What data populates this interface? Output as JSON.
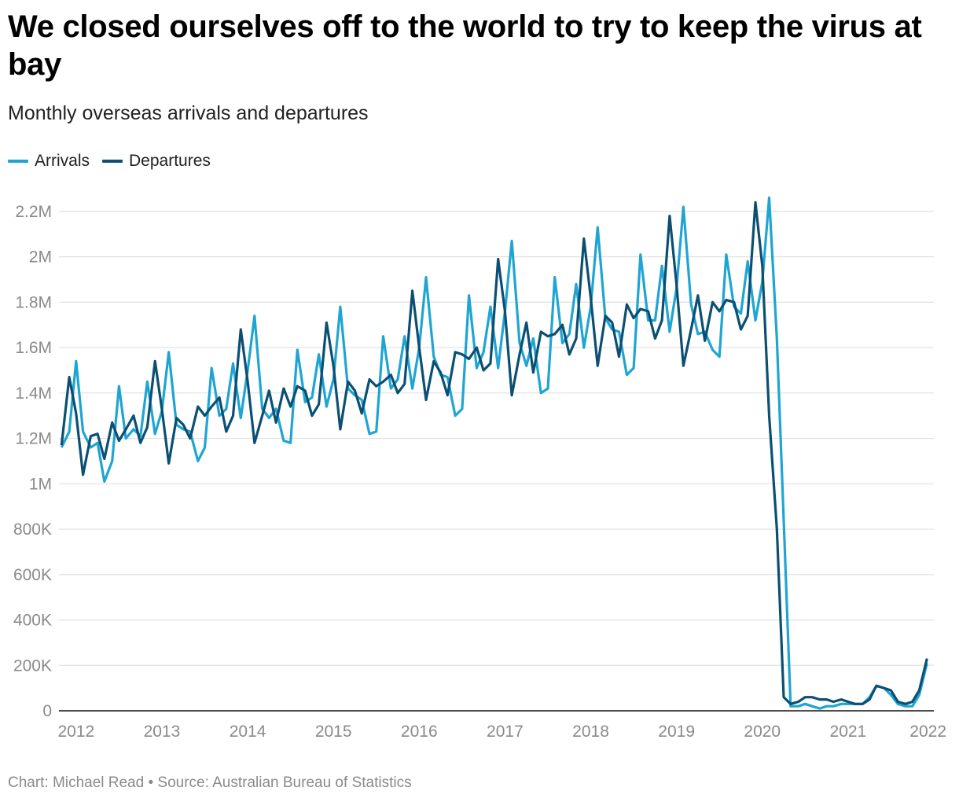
{
  "title": "We closed ourselves off to the world to try to keep the virus at bay",
  "subtitle": "Monthly overseas arrivals and departures",
  "footer": "Chart: Michael Read • Source: Australian Bureau of Statistics",
  "colors": {
    "arrivals": "#1fa5d2",
    "departures": "#0b4f73",
    "grid": "#e0e0e0",
    "axis": "#111111"
  },
  "chart_data": {
    "type": "line",
    "x_range": [
      2011.8,
      2022.0
    ],
    "ylim": [
      0,
      2300000
    ],
    "y_ticks": [
      {
        "value": 0,
        "label": "0"
      },
      {
        "value": 200000,
        "label": "200K"
      },
      {
        "value": 400000,
        "label": "400K"
      },
      {
        "value": 600000,
        "label": "600K"
      },
      {
        "value": 800000,
        "label": "800K"
      },
      {
        "value": 1000000,
        "label": "1M"
      },
      {
        "value": 1200000,
        "label": "1.2M"
      },
      {
        "value": 1400000,
        "label": "1.4M"
      },
      {
        "value": 1600000,
        "label": "1.6M"
      },
      {
        "value": 1800000,
        "label": "1.8M"
      },
      {
        "value": 2000000,
        "label": "2M"
      },
      {
        "value": 2200000,
        "label": "2.2M"
      }
    ],
    "x_ticks": [
      {
        "value": 2012,
        "label": "2012"
      },
      {
        "value": 2013,
        "label": "2013"
      },
      {
        "value": 2014,
        "label": "2014"
      },
      {
        "value": 2015,
        "label": "2015"
      },
      {
        "value": 2016,
        "label": "2016"
      },
      {
        "value": 2017,
        "label": "2017"
      },
      {
        "value": 2018,
        "label": "2018"
      },
      {
        "value": 2019,
        "label": "2019"
      },
      {
        "value": 2020,
        "label": "2020"
      },
      {
        "value": 2021,
        "label": "2021"
      },
      {
        "value": 2022,
        "label": "2022"
      }
    ],
    "grid": true,
    "legend_position": "top-left",
    "series": [
      {
        "name": "Arrivals",
        "color": "#1fa5d2",
        "points": [
          [
            2011.83,
            1160000
          ],
          [
            2011.92,
            1230000
          ],
          [
            2012.0,
            1540000
          ],
          [
            2012.08,
            1230000
          ],
          [
            2012.17,
            1160000
          ],
          [
            2012.25,
            1180000
          ],
          [
            2012.33,
            1010000
          ],
          [
            2012.42,
            1100000
          ],
          [
            2012.5,
            1430000
          ],
          [
            2012.58,
            1200000
          ],
          [
            2012.67,
            1240000
          ],
          [
            2012.75,
            1210000
          ],
          [
            2012.83,
            1450000
          ],
          [
            2012.92,
            1220000
          ],
          [
            2013.0,
            1320000
          ],
          [
            2013.08,
            1580000
          ],
          [
            2013.17,
            1260000
          ],
          [
            2013.25,
            1240000
          ],
          [
            2013.33,
            1230000
          ],
          [
            2013.42,
            1100000
          ],
          [
            2013.5,
            1160000
          ],
          [
            2013.58,
            1510000
          ],
          [
            2013.67,
            1300000
          ],
          [
            2013.75,
            1330000
          ],
          [
            2013.83,
            1530000
          ],
          [
            2013.92,
            1290000
          ],
          [
            2014.0,
            1500000
          ],
          [
            2014.08,
            1740000
          ],
          [
            2014.17,
            1330000
          ],
          [
            2014.25,
            1290000
          ],
          [
            2014.33,
            1330000
          ],
          [
            2014.42,
            1190000
          ],
          [
            2014.5,
            1180000
          ],
          [
            2014.58,
            1590000
          ],
          [
            2014.67,
            1360000
          ],
          [
            2014.75,
            1380000
          ],
          [
            2014.83,
            1570000
          ],
          [
            2014.92,
            1340000
          ],
          [
            2015.0,
            1460000
          ],
          [
            2015.08,
            1780000
          ],
          [
            2015.17,
            1420000
          ],
          [
            2015.25,
            1390000
          ],
          [
            2015.33,
            1370000
          ],
          [
            2015.42,
            1220000
          ],
          [
            2015.5,
            1230000
          ],
          [
            2015.58,
            1650000
          ],
          [
            2015.67,
            1420000
          ],
          [
            2015.75,
            1460000
          ],
          [
            2015.83,
            1650000
          ],
          [
            2015.92,
            1420000
          ],
          [
            2016.0,
            1600000
          ],
          [
            2016.08,
            1910000
          ],
          [
            2016.17,
            1560000
          ],
          [
            2016.25,
            1480000
          ],
          [
            2016.33,
            1470000
          ],
          [
            2016.42,
            1300000
          ],
          [
            2016.5,
            1330000
          ],
          [
            2016.58,
            1830000
          ],
          [
            2016.67,
            1510000
          ],
          [
            2016.75,
            1580000
          ],
          [
            2016.83,
            1780000
          ],
          [
            2016.92,
            1510000
          ],
          [
            2017.0,
            1760000
          ],
          [
            2017.08,
            2070000
          ],
          [
            2017.17,
            1620000
          ],
          [
            2017.25,
            1520000
          ],
          [
            2017.33,
            1640000
          ],
          [
            2017.42,
            1400000
          ],
          [
            2017.5,
            1420000
          ],
          [
            2017.58,
            1910000
          ],
          [
            2017.67,
            1620000
          ],
          [
            2017.75,
            1660000
          ],
          [
            2017.83,
            1880000
          ],
          [
            2017.92,
            1600000
          ],
          [
            2018.0,
            1780000
          ],
          [
            2018.08,
            2130000
          ],
          [
            2018.17,
            1730000
          ],
          [
            2018.25,
            1680000
          ],
          [
            2018.33,
            1670000
          ],
          [
            2018.42,
            1480000
          ],
          [
            2018.5,
            1510000
          ],
          [
            2018.58,
            2010000
          ],
          [
            2018.67,
            1720000
          ],
          [
            2018.75,
            1720000
          ],
          [
            2018.83,
            1960000
          ],
          [
            2018.92,
            1670000
          ],
          [
            2019.0,
            1860000
          ],
          [
            2019.08,
            2220000
          ],
          [
            2019.17,
            1790000
          ],
          [
            2019.25,
            1660000
          ],
          [
            2019.33,
            1670000
          ],
          [
            2019.42,
            1590000
          ],
          [
            2019.5,
            1560000
          ],
          [
            2019.58,
            2010000
          ],
          [
            2019.67,
            1780000
          ],
          [
            2019.75,
            1750000
          ],
          [
            2019.83,
            1980000
          ],
          [
            2019.92,
            1720000
          ],
          [
            2020.0,
            1890000
          ],
          [
            2020.08,
            2260000
          ],
          [
            2020.17,
            1640000
          ],
          [
            2020.25,
            840000
          ],
          [
            2020.33,
            20000
          ],
          [
            2020.42,
            20000
          ],
          [
            2020.5,
            30000
          ],
          [
            2020.58,
            20000
          ],
          [
            2020.67,
            10000
          ],
          [
            2020.75,
            20000
          ],
          [
            2020.83,
            20000
          ],
          [
            2020.92,
            30000
          ],
          [
            2021.0,
            30000
          ],
          [
            2021.08,
            30000
          ],
          [
            2021.17,
            30000
          ],
          [
            2021.25,
            60000
          ],
          [
            2021.33,
            110000
          ],
          [
            2021.42,
            100000
          ],
          [
            2021.5,
            70000
          ],
          [
            2021.58,
            30000
          ],
          [
            2021.67,
            20000
          ],
          [
            2021.75,
            20000
          ],
          [
            2021.83,
            70000
          ],
          [
            2021.92,
            210000
          ]
        ]
      },
      {
        "name": "Departures",
        "color": "#0b4f73",
        "points": [
          [
            2011.83,
            1170000
          ],
          [
            2011.92,
            1470000
          ],
          [
            2012.0,
            1310000
          ],
          [
            2012.08,
            1040000
          ],
          [
            2012.17,
            1210000
          ],
          [
            2012.25,
            1220000
          ],
          [
            2012.33,
            1110000
          ],
          [
            2012.42,
            1270000
          ],
          [
            2012.5,
            1190000
          ],
          [
            2012.58,
            1240000
          ],
          [
            2012.67,
            1300000
          ],
          [
            2012.75,
            1180000
          ],
          [
            2012.83,
            1250000
          ],
          [
            2012.92,
            1540000
          ],
          [
            2013.0,
            1330000
          ],
          [
            2013.08,
            1090000
          ],
          [
            2013.17,
            1290000
          ],
          [
            2013.25,
            1260000
          ],
          [
            2013.33,
            1200000
          ],
          [
            2013.42,
            1340000
          ],
          [
            2013.5,
            1300000
          ],
          [
            2013.58,
            1340000
          ],
          [
            2013.67,
            1380000
          ],
          [
            2013.75,
            1230000
          ],
          [
            2013.83,
            1300000
          ],
          [
            2013.92,
            1680000
          ],
          [
            2014.0,
            1450000
          ],
          [
            2014.08,
            1180000
          ],
          [
            2014.17,
            1300000
          ],
          [
            2014.25,
            1410000
          ],
          [
            2014.33,
            1270000
          ],
          [
            2014.42,
            1420000
          ],
          [
            2014.5,
            1340000
          ],
          [
            2014.58,
            1430000
          ],
          [
            2014.67,
            1410000
          ],
          [
            2014.75,
            1300000
          ],
          [
            2014.83,
            1350000
          ],
          [
            2014.92,
            1710000
          ],
          [
            2015.0,
            1520000
          ],
          [
            2015.08,
            1240000
          ],
          [
            2015.17,
            1450000
          ],
          [
            2015.25,
            1410000
          ],
          [
            2015.33,
            1310000
          ],
          [
            2015.42,
            1460000
          ],
          [
            2015.5,
            1430000
          ],
          [
            2015.58,
            1450000
          ],
          [
            2015.67,
            1480000
          ],
          [
            2015.75,
            1400000
          ],
          [
            2015.83,
            1440000
          ],
          [
            2015.92,
            1850000
          ],
          [
            2016.0,
            1600000
          ],
          [
            2016.08,
            1370000
          ],
          [
            2016.17,
            1540000
          ],
          [
            2016.25,
            1490000
          ],
          [
            2016.33,
            1390000
          ],
          [
            2016.42,
            1580000
          ],
          [
            2016.5,
            1570000
          ],
          [
            2016.58,
            1550000
          ],
          [
            2016.67,
            1600000
          ],
          [
            2016.75,
            1500000
          ],
          [
            2016.83,
            1530000
          ],
          [
            2016.92,
            1990000
          ],
          [
            2017.0,
            1760000
          ],
          [
            2017.08,
            1390000
          ],
          [
            2017.17,
            1570000
          ],
          [
            2017.25,
            1710000
          ],
          [
            2017.33,
            1490000
          ],
          [
            2017.42,
            1670000
          ],
          [
            2017.5,
            1650000
          ],
          [
            2017.58,
            1660000
          ],
          [
            2017.67,
            1700000
          ],
          [
            2017.75,
            1570000
          ],
          [
            2017.83,
            1640000
          ],
          [
            2017.92,
            2080000
          ],
          [
            2018.0,
            1820000
          ],
          [
            2018.08,
            1520000
          ],
          [
            2018.17,
            1740000
          ],
          [
            2018.25,
            1710000
          ],
          [
            2018.33,
            1560000
          ],
          [
            2018.42,
            1790000
          ],
          [
            2018.5,
            1730000
          ],
          [
            2018.58,
            1770000
          ],
          [
            2018.67,
            1760000
          ],
          [
            2018.75,
            1640000
          ],
          [
            2018.83,
            1720000
          ],
          [
            2018.92,
            2180000
          ],
          [
            2019.0,
            1880000
          ],
          [
            2019.08,
            1520000
          ],
          [
            2019.17,
            1680000
          ],
          [
            2019.25,
            1830000
          ],
          [
            2019.33,
            1630000
          ],
          [
            2019.42,
            1800000
          ],
          [
            2019.5,
            1760000
          ],
          [
            2019.58,
            1810000
          ],
          [
            2019.67,
            1800000
          ],
          [
            2019.75,
            1680000
          ],
          [
            2019.83,
            1740000
          ],
          [
            2019.92,
            2240000
          ],
          [
            2020.0,
            1960000
          ],
          [
            2020.08,
            1300000
          ],
          [
            2020.17,
            800000
          ],
          [
            2020.25,
            60000
          ],
          [
            2020.33,
            30000
          ],
          [
            2020.42,
            40000
          ],
          [
            2020.5,
            60000
          ],
          [
            2020.58,
            60000
          ],
          [
            2020.67,
            50000
          ],
          [
            2020.75,
            50000
          ],
          [
            2020.83,
            40000
          ],
          [
            2020.92,
            50000
          ],
          [
            2021.0,
            40000
          ],
          [
            2021.08,
            30000
          ],
          [
            2021.17,
            30000
          ],
          [
            2021.25,
            50000
          ],
          [
            2021.33,
            110000
          ],
          [
            2021.42,
            100000
          ],
          [
            2021.5,
            90000
          ],
          [
            2021.58,
            40000
          ],
          [
            2021.67,
            30000
          ],
          [
            2021.75,
            40000
          ],
          [
            2021.83,
            90000
          ],
          [
            2021.92,
            230000
          ]
        ]
      }
    ]
  }
}
